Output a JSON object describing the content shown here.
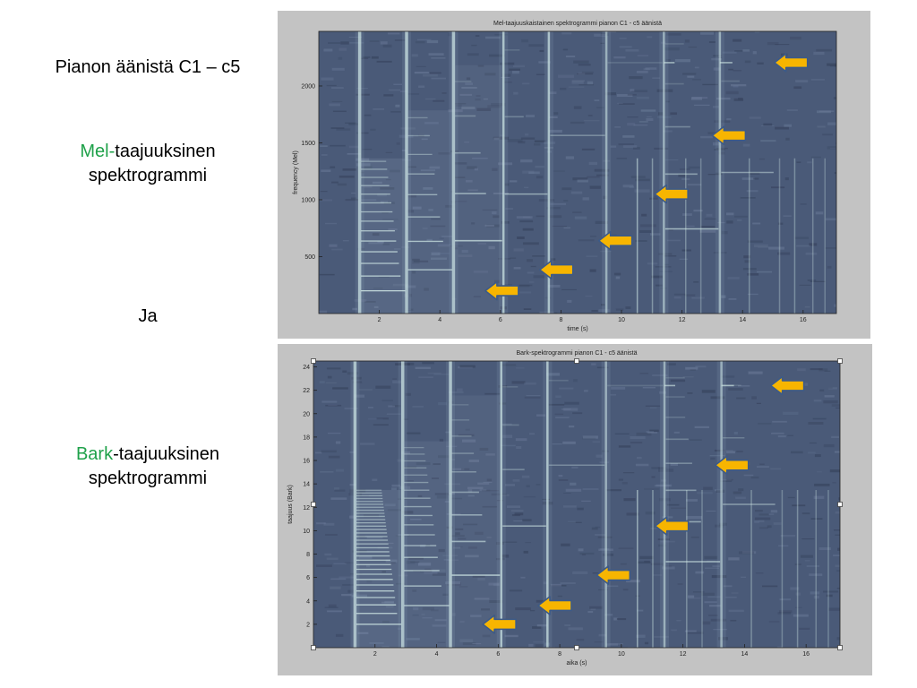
{
  "captions": {
    "title": "Pianon äänistä C1 – c5",
    "mel_highlight": "Mel-",
    "mel_rest": "taajuuksinen",
    "mel_line2": "spektrogrammi",
    "ja": "Ja",
    "bark_highlight": "Bark",
    "bark_rest": "-taajuuksinen",
    "bark_line2": "spektrogrammi"
  },
  "colors": {
    "panel": "#c3c3c3",
    "spectro_base": "#4a5a78",
    "harmonic": "#d8f0ec",
    "arrow_fill": "#f7b500",
    "arrow_stroke": "#3c5a88",
    "highlight_text": "#1fa14a"
  },
  "chart_data": [
    {
      "type": "heatmap",
      "title": "Mel-taajuuskaistainen spektrogrammi pianon C1 - c5 äänistä",
      "xlabel": "time (s)",
      "ylabel": "frequency (Mel)",
      "xlim": [
        0,
        17.1
      ],
      "ylim": [
        0,
        2480
      ],
      "xticks": [
        2,
        4,
        6,
        8,
        10,
        12,
        14,
        16
      ],
      "yticks": [
        500,
        1000,
        1500,
        2000
      ],
      "note_onsets_s": [
        1.35,
        2.9,
        4.45,
        6.1,
        7.6,
        9.5,
        11.4,
        13.25
      ],
      "arrows": [
        {
          "t": 5.5,
          "f": 200
        },
        {
          "t": 7.3,
          "f": 385
        },
        {
          "t": 9.25,
          "f": 640
        },
        {
          "t": 11.1,
          "f": 1050
        },
        {
          "t": 13.0,
          "f": 1565
        },
        {
          "t": 15.05,
          "f": 2205
        }
      ]
    },
    {
      "type": "heatmap",
      "title": "Bark-spektrogrammi pianon C1 - c5 äänistä",
      "xlabel": "aika (s)",
      "ylabel": "taajuus (Bark)",
      "xlim": [
        0,
        17.1
      ],
      "ylim": [
        0,
        24.5
      ],
      "xticks": [
        2,
        4,
        6,
        8,
        10,
        12,
        14,
        16
      ],
      "yticks": [
        2,
        4,
        6,
        8,
        10,
        12,
        14,
        16,
        18,
        20,
        22,
        24
      ],
      "note_onsets_s": [
        1.35,
        2.9,
        4.45,
        6.1,
        7.6,
        9.5,
        11.4,
        13.25
      ],
      "arrows": [
        {
          "t": 5.5,
          "f": 2.0
        },
        {
          "t": 7.3,
          "f": 3.6
        },
        {
          "t": 9.2,
          "f": 6.2
        },
        {
          "t": 11.1,
          "f": 10.4
        },
        {
          "t": 13.05,
          "f": 15.6
        },
        {
          "t": 14.85,
          "f": 22.4
        }
      ]
    }
  ]
}
